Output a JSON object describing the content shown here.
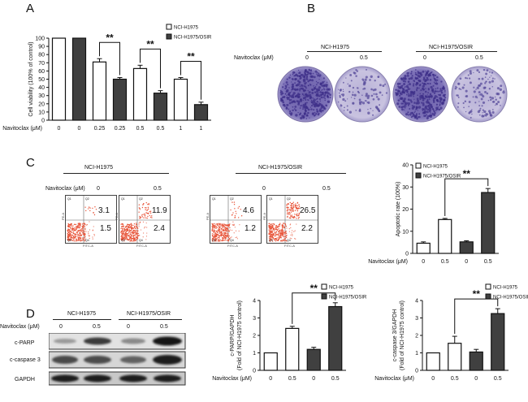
{
  "panels": {
    "a": "A",
    "b": "B",
    "c": "C",
    "d": "D"
  },
  "colors": {
    "white_bar": "#ffffff",
    "dark_bar": "#404040",
    "plate": "#7a6fb0",
    "flow_dot": "#e8553a"
  },
  "legend": {
    "h1975": "NCI-H1975",
    "osir": "NCI-H1975/OSIR"
  },
  "sig": "**",
  "panel_a": {
    "xlabel": "Navitoclax (μM)",
    "ticks": [
      "0",
      "0",
      "0.25",
      "0.25",
      "0.5",
      "0.5",
      "1",
      "1"
    ]
  },
  "panel_b": {
    "navitoclax_label": "Navitoclax (μM)",
    "group1": "NCI-H1975",
    "group2": "NCI-H1975/OSIR",
    "doses": [
      "0",
      "0.5",
      "0",
      "0.5"
    ]
  },
  "panel_c_flow": {
    "navitoclax_label": "Navitoclax (μM)",
    "group1": "NCI-H1975",
    "group2": "NCI-H1975/OSIR",
    "doses": [
      "0",
      "0.5",
      "0",
      "0.5"
    ],
    "plots": [
      {
        "q2": "3.1",
        "q4": "1.5"
      },
      {
        "q2": "11.9",
        "q4": "2.4"
      },
      {
        "q2": "4.6",
        "q4": "1.2"
      },
      {
        "q2": "26.5",
        "q4": "2.2"
      }
    ],
    "q_labels": [
      "Q1",
      "Q2",
      "Q3",
      "Q4"
    ],
    "axis_x": "FITC-A",
    "axis_y": "PE-A"
  },
  "panel_d_blot": {
    "group1": "NCI-H1975",
    "group2": "NCI-H1975/OSIR",
    "navitoclax_label": "Navitoclax (μM)",
    "doses": [
      "0",
      "0.5",
      "0",
      "0.5"
    ],
    "rows": [
      "c-PARP",
      "c-caspase 3",
      "GAPDH"
    ]
  },
  "chart_data": [
    {
      "type": "bar",
      "id": "A",
      "ylabel": "Cell viability (100% of control)",
      "ylim": [
        0,
        100
      ],
      "yticks": [
        "0",
        "10",
        "20",
        "30",
        "40",
        "50",
        "60",
        "70",
        "80",
        "90",
        "100"
      ],
      "xlabel": "Navitoclax (μM)",
      "categories": [
        "0",
        "0",
        "0.25",
        "0.25",
        "0.5",
        "0.5",
        "1",
        "1"
      ],
      "values": [
        100,
        100,
        71,
        50,
        63,
        33,
        50,
        19
      ],
      "errors": [
        0,
        0,
        4,
        2,
        4,
        3,
        2,
        3
      ],
      "fill": [
        "white",
        "dark",
        "white",
        "dark",
        "white",
        "dark",
        "white",
        "dark"
      ],
      "sig_pairs": [
        [
          2,
          3
        ],
        [
          4,
          5
        ],
        [
          6,
          7
        ]
      ]
    },
    {
      "type": "bar",
      "id": "C",
      "ylabel": "Apoptotic rate (100%)",
      "ylim": [
        0,
        40
      ],
      "yticks": [
        "0",
        "10",
        "20",
        "30",
        "40"
      ],
      "xlabel": "Navitoclax (μM)",
      "categories": [
        "0",
        "0.5",
        "0",
        "0.5"
      ],
      "values": [
        4.6,
        15.3,
        5.2,
        27.5
      ],
      "errors": [
        0.6,
        0.5,
        0.5,
        1.8
      ],
      "fill": [
        "white",
        "white",
        "dark",
        "dark"
      ],
      "sig_pairs": [
        [
          1,
          3
        ]
      ]
    },
    {
      "type": "bar",
      "id": "D1",
      "ylabel": "c-PARP/GAPDH (Fold of NCI-H1975 control)",
      "ylim": [
        0,
        4
      ],
      "yticks": [
        "0",
        "1",
        "2",
        "3",
        "4"
      ],
      "xlabel": "Navitoclax (μM)",
      "categories": [
        "0",
        "0.5",
        "0",
        "0.5"
      ],
      "values": [
        1.0,
        2.4,
        1.2,
        3.65
      ],
      "errors": [
        0,
        0.12,
        0.12,
        0.22
      ],
      "fill": [
        "white",
        "white",
        "dark",
        "dark"
      ],
      "sig_pairs": [
        [
          1,
          3
        ]
      ]
    },
    {
      "type": "bar",
      "id": "D2",
      "ylabel": "c-caspase 3/GAPDH (Fold of NCI-H1975 control)",
      "ylim": [
        0,
        4
      ],
      "yticks": [
        "0",
        "1",
        "2",
        "3",
        "4"
      ],
      "xlabel": "Navitoclax (μM)",
      "categories": [
        "0",
        "0.5",
        "0",
        "0.5"
      ],
      "values": [
        1.0,
        1.55,
        1.05,
        3.25
      ],
      "errors": [
        0,
        0.4,
        0.15,
        0.28
      ],
      "fill": [
        "white",
        "white",
        "dark",
        "dark"
      ],
      "sig_pairs": [
        [
          1,
          3
        ]
      ]
    }
  ]
}
